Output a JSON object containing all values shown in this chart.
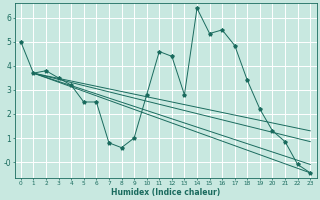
{
  "background_color": "#c8e8e0",
  "grid_color": "#b0d8d0",
  "line_color": "#1a6b5e",
  "xlabel": "Humidex (Indice chaleur)",
  "xlim": [
    -0.5,
    23.5
  ],
  "ylim": [
    -0.65,
    6.6
  ],
  "yticks": [
    0,
    1,
    2,
    3,
    4,
    5,
    6
  ],
  "ytick_labels": [
    "-0",
    "1",
    "2",
    "3",
    "4",
    "5",
    "6"
  ],
  "xticks": [
    0,
    1,
    2,
    3,
    4,
    5,
    6,
    7,
    8,
    9,
    10,
    11,
    12,
    13,
    14,
    15,
    16,
    17,
    18,
    19,
    20,
    21,
    22,
    23
  ],
  "main_line": {
    "x": [
      0,
      1,
      2,
      3,
      4,
      5,
      6,
      7,
      8,
      9,
      10,
      11,
      12,
      13,
      14,
      15,
      16,
      17,
      18,
      19,
      20,
      21,
      22,
      23
    ],
    "y": [
      5.0,
      3.7,
      3.8,
      3.5,
      3.2,
      2.5,
      2.5,
      0.8,
      0.6,
      1.0,
      2.8,
      4.6,
      4.4,
      2.8,
      6.4,
      5.35,
      5.5,
      4.85,
      3.4,
      2.2,
      1.3,
      0.85,
      -0.1,
      -0.45
    ]
  },
  "trend_lines": [
    {
      "x": [
        1,
        23
      ],
      "y": [
        3.7,
        -0.45
      ]
    },
    {
      "x": [
        1,
        23
      ],
      "y": [
        3.7,
        -0.1
      ]
    },
    {
      "x": [
        1,
        23
      ],
      "y": [
        3.7,
        0.85
      ]
    },
    {
      "x": [
        1,
        23
      ],
      "y": [
        3.7,
        1.3
      ]
    }
  ]
}
